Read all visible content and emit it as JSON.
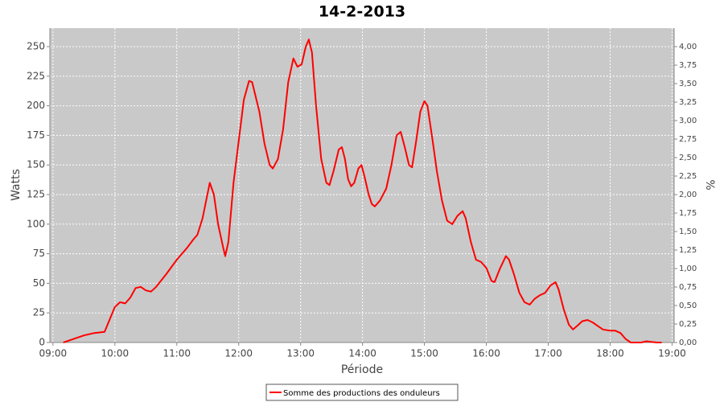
{
  "chart_data": {
    "type": "line",
    "title": "14-2-2013",
    "x_label": "Période",
    "y_label": "Watts",
    "y2_label": "%",
    "x": [
      "09:10",
      "09:20",
      "09:30",
      "09:40",
      "09:50",
      "10:00",
      "10:05",
      "10:10",
      "10:15",
      "10:20",
      "10:25",
      "10:30",
      "10:35",
      "10:40",
      "10:50",
      "11:00",
      "11:10",
      "11:16",
      "11:20",
      "11:25",
      "11:32",
      "11:36",
      "11:40",
      "11:45",
      "11:47",
      "11:50",
      "11:55",
      "12:00",
      "12:05",
      "12:10",
      "12:13",
      "12:20",
      "12:25",
      "12:30",
      "12:33",
      "12:38",
      "12:43",
      "12:48",
      "12:53",
      "12:57",
      "13:01",
      "13:05",
      "13:08",
      "13:11",
      "13:15",
      "13:20",
      "13:25",
      "13:28",
      "13:32",
      "13:37",
      "13:40",
      "13:43",
      "13:46",
      "13:49",
      "13:52",
      "13:56",
      "13:59",
      "14:02",
      "14:06",
      "14:09",
      "14:12",
      "14:17",
      "14:23",
      "14:28",
      "14:33",
      "14:37",
      "14:41",
      "14:45",
      "14:48",
      "14:52",
      "14:56",
      "15:00",
      "15:03",
      "15:08",
      "15:12",
      "15:17",
      "15:22",
      "15:27",
      "15:32",
      "15:37",
      "15:40",
      "15:45",
      "15:50",
      "15:55",
      "16:00",
      "16:05",
      "16:08",
      "16:13",
      "16:19",
      "16:22",
      "16:27",
      "16:32",
      "16:37",
      "16:42",
      "16:47",
      "16:52",
      "16:57",
      "17:02",
      "17:07",
      "17:10",
      "17:15",
      "17:20",
      "17:24",
      "17:28",
      "17:33",
      "17:38",
      "17:43",
      "17:48",
      "17:53",
      "18:00",
      "18:05",
      "18:10",
      "18:15",
      "18:20",
      "18:30",
      "18:35",
      "18:45",
      "18:50"
    ],
    "series": [
      {
        "name": "Somme des productions des onduleurs",
        "color": "#ff0000",
        "values": [
          0,
          3,
          6,
          8,
          9,
          30,
          34,
          33,
          38,
          46,
          47,
          44,
          43,
          47,
          58,
          70,
          80,
          87,
          91,
          105,
          135,
          125,
          100,
          80,
          73,
          85,
          135,
          170,
          205,
          221,
          220,
          195,
          168,
          150,
          147,
          155,
          180,
          220,
          240,
          233,
          235,
          250,
          256,
          245,
          200,
          155,
          135,
          133,
          145,
          163,
          165,
          155,
          138,
          132,
          135,
          147,
          150,
          140,
          125,
          117,
          115,
          120,
          130,
          150,
          175,
          178,
          165,
          150,
          148,
          170,
          195,
          204,
          200,
          170,
          145,
          120,
          103,
          100,
          107,
          111,
          105,
          85,
          70,
          68,
          63,
          52,
          51,
          62,
          73,
          70,
          57,
          42,
          34,
          32,
          37,
          40,
          42,
          48,
          51,
          45,
          28,
          15,
          11,
          14,
          18,
          19,
          17,
          14,
          11,
          10,
          10,
          8,
          3,
          0,
          0,
          1,
          0,
          0
        ]
      }
    ],
    "xlim": [
      "08:57",
      "19:02"
    ],
    "xticks": [
      "09:00",
      "10:00",
      "11:00",
      "12:00",
      "13:00",
      "14:00",
      "15:00",
      "16:00",
      "17:00",
      "18:00",
      "19:00"
    ],
    "ylim": [
      0,
      265.6
    ],
    "yticks": [
      0,
      25,
      50,
      75,
      100,
      125,
      150,
      175,
      200,
      225,
      250
    ],
    "y2lim": [
      0,
      4.25
    ],
    "y2ticks": [
      {
        "value": 0,
        "label": "0,00"
      },
      {
        "value": 0.25,
        "label": "0,25"
      },
      {
        "value": 0.5,
        "label": "0,50"
      },
      {
        "value": 0.75,
        "label": "0,75"
      },
      {
        "value": 1,
        "label": "1,00"
      },
      {
        "value": 1.25,
        "label": "1,25"
      },
      {
        "value": 1.5,
        "label": "1,50"
      },
      {
        "value": 1.75,
        "label": "1,75"
      },
      {
        "value": 2,
        "label": "2,00"
      },
      {
        "value": 2.25,
        "label": "2,25"
      },
      {
        "value": 2.5,
        "label": "2,50"
      },
      {
        "value": 2.75,
        "label": "2,75"
      },
      {
        "value": 3,
        "label": "3,00"
      },
      {
        "value": 3.25,
        "label": "3,25"
      },
      {
        "value": 3.5,
        "label": "3,50"
      },
      {
        "value": 3.75,
        "label": "3,75"
      },
      {
        "value": 4,
        "label": "4,00"
      }
    ],
    "grid": true,
    "legend": "bottom"
  }
}
